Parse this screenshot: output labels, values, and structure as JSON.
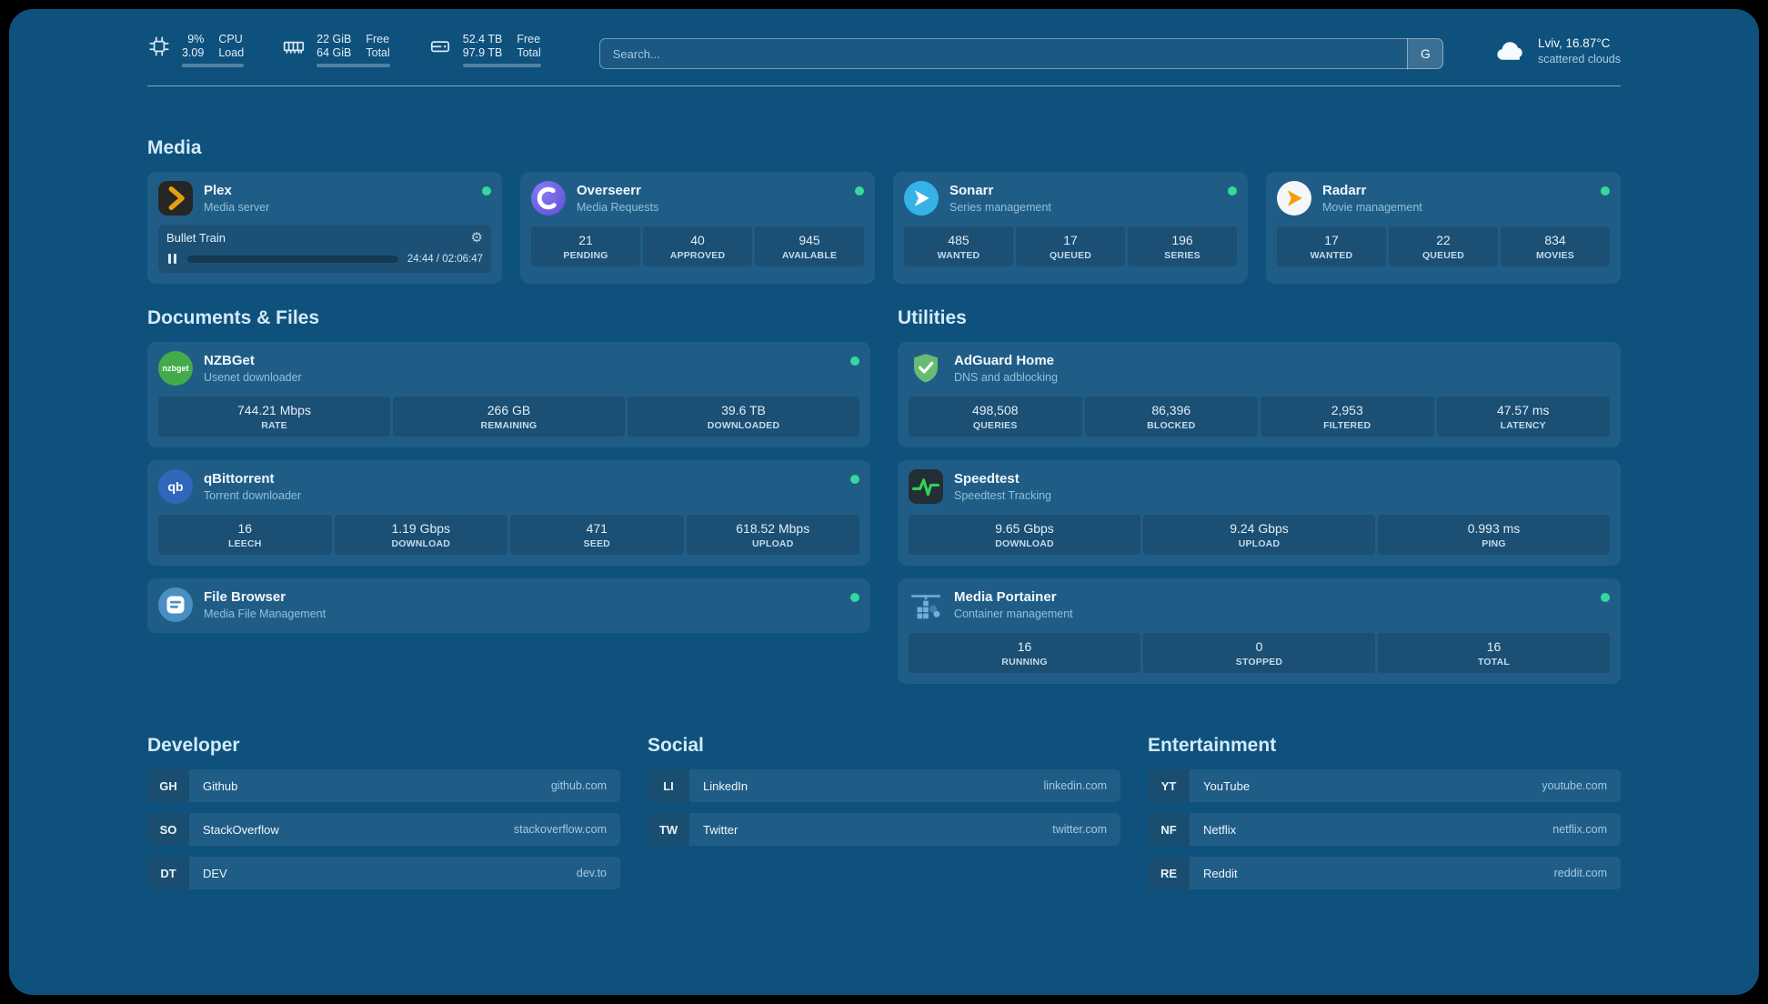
{
  "colors": {
    "background": "#0f517d",
    "status_green": "#35d89e",
    "plex_amber": "#e5a00d",
    "adguard_green": "#68bc71",
    "speedtest_green": "#30d158"
  },
  "topbar": {
    "cpu": {
      "value1": "9%",
      "value2": "3.09",
      "label1": "CPU",
      "label2": "Load",
      "bar_pct": 9
    },
    "memory": {
      "value1": "22 GiB",
      "value2": "64 GiB",
      "label1": "Free",
      "label2": "Total",
      "bar_pct": 66
    },
    "disk": {
      "value1": "52.4 TB",
      "value2": "97.9 TB",
      "label1": "Free",
      "label2": "Total",
      "bar_pct": 46
    },
    "search": {
      "placeholder": "Search...",
      "button_label": "G"
    },
    "weather": {
      "location": "Lviv, 16.87°C",
      "condition": "scattered clouds"
    }
  },
  "media": {
    "title": "Media",
    "plex": {
      "name": "Plex",
      "desc": "Media server",
      "now_playing": "Bullet Train",
      "time": "24:44 / 02:06:47",
      "progress_pct": 19,
      "gear_glyph": "⚙"
    },
    "overseerr": {
      "name": "Overseerr",
      "desc": "Media Requests",
      "stats": [
        {
          "value": "21",
          "label": "PENDING"
        },
        {
          "value": "40",
          "label": "APPROVED"
        },
        {
          "value": "945",
          "label": "AVAILABLE"
        }
      ]
    },
    "sonarr": {
      "name": "Sonarr",
      "desc": "Series management",
      "stats": [
        {
          "value": "485",
          "label": "WANTED"
        },
        {
          "value": "17",
          "label": "QUEUED"
        },
        {
          "value": "196",
          "label": "SERIES"
        }
      ]
    },
    "radarr": {
      "name": "Radarr",
      "desc": "Movie management",
      "stats": [
        {
          "value": "17",
          "label": "WANTED"
        },
        {
          "value": "22",
          "label": "QUEUED"
        },
        {
          "value": "834",
          "label": "MOVIES"
        }
      ]
    }
  },
  "documents": {
    "title": "Documents & Files",
    "nzbget": {
      "name": "NZBGet",
      "desc": "Usenet downloader",
      "icon_text": "nzbget",
      "stats": [
        {
          "value": "744.21 Mbps",
          "label": "RATE"
        },
        {
          "value": "266 GB",
          "label": "REMAINING"
        },
        {
          "value": "39.6 TB",
          "label": "DOWNLOADED"
        }
      ]
    },
    "qbittorrent": {
      "name": "qBittorrent",
      "desc": "Torrent downloader",
      "icon_text": "qb",
      "stats": [
        {
          "value": "16",
          "label": "LEECH"
        },
        {
          "value": "1.19 Gbps",
          "label": "DOWNLOAD"
        },
        {
          "value": "471",
          "label": "SEED"
        },
        {
          "value": "618.52 Mbps",
          "label": "UPLOAD"
        }
      ]
    },
    "filebrowser": {
      "name": "File Browser",
      "desc": "Media File Management"
    }
  },
  "utilities": {
    "title": "Utilities",
    "adguard": {
      "name": "AdGuard Home",
      "desc": "DNS and adblocking",
      "stats": [
        {
          "value": "498,508",
          "label": "QUERIES"
        },
        {
          "value": "86,396",
          "label": "BLOCKED"
        },
        {
          "value": "2,953",
          "label": "FILTERED"
        },
        {
          "value": "47.57 ms",
          "label": "LATENCY"
        }
      ]
    },
    "speedtest": {
      "name": "Speedtest",
      "desc": "Speedtest Tracking",
      "stats": [
        {
          "value": "9.65 Gbps",
          "label": "DOWNLOAD"
        },
        {
          "value": "9.24 Gbps",
          "label": "UPLOAD"
        },
        {
          "value": "0.993 ms",
          "label": "PING"
        }
      ]
    },
    "portainer": {
      "name": "Media Portainer",
      "desc": "Container management",
      "stats": [
        {
          "value": "16",
          "label": "RUNNING"
        },
        {
          "value": "0",
          "label": "STOPPED"
        },
        {
          "value": "16",
          "label": "TOTAL"
        }
      ]
    }
  },
  "bookmarks": {
    "developer": {
      "title": "Developer",
      "items": [
        {
          "abbr": "GH",
          "name": "Github",
          "domain": "github.com"
        },
        {
          "abbr": "SO",
          "name": "StackOverflow",
          "domain": "stackoverflow.com"
        },
        {
          "abbr": "DT",
          "name": "DEV",
          "domain": "dev.to"
        }
      ]
    },
    "social": {
      "title": "Social",
      "items": [
        {
          "abbr": "LI",
          "name": "LinkedIn",
          "domain": "linkedin.com"
        },
        {
          "abbr": "TW",
          "name": "Twitter",
          "domain": "twitter.com"
        }
      ]
    },
    "entertainment": {
      "title": "Entertainment",
      "items": [
        {
          "abbr": "YT",
          "name": "YouTube",
          "domain": "youtube.com"
        },
        {
          "abbr": "NF",
          "name": "Netflix",
          "domain": "netflix.com"
        },
        {
          "abbr": "RE",
          "name": "Reddit",
          "domain": "reddit.com"
        }
      ]
    }
  }
}
